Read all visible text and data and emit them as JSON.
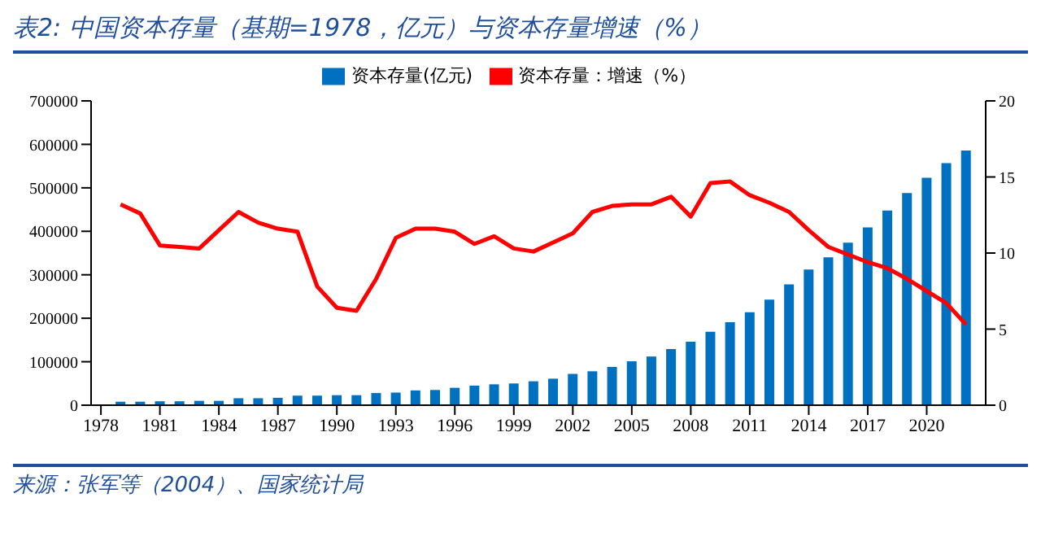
{
  "chart_data": {
    "type": "bar",
    "title": "表2:  中国资本存量（基期=1978，亿元）与资本存量增速（%）",
    "annotations": [
      "来源：张军等（2004）、国家统计局"
    ],
    "x": [
      1979,
      1980,
      1981,
      1982,
      1983,
      1984,
      1985,
      1986,
      1987,
      1988,
      1989,
      1990,
      1991,
      1992,
      1993,
      1994,
      1995,
      1996,
      1997,
      1998,
      1999,
      2000,
      2001,
      2002,
      2003,
      2004,
      2005,
      2006,
      2007,
      2008,
      2009,
      2010,
      2011,
      2012,
      2013,
      2014,
      2015,
      2016,
      2017,
      2018,
      2019,
      2020,
      2021,
      2022
    ],
    "series": [
      {
        "name": "资本存量(亿元)",
        "color": "#0070c0",
        "values": [
          8000,
          8000,
          9000,
          9000,
          10000,
          10000,
          16000,
          16000,
          17000,
          22000,
          22000,
          23000,
          23000,
          28000,
          29000,
          34000,
          35000,
          40000,
          45000,
          48000,
          50000,
          55000,
          61000,
          72000,
          78000,
          88000,
          101000,
          112000,
          129000,
          146000,
          169000,
          191000,
          214000,
          243000,
          278000,
          312000,
          340000,
          374000,
          409000,
          448000,
          488000,
          523000,
          557000,
          586000
        ]
      },
      {
        "name": "资本存量：增速（%）",
        "type": "line",
        "axis": "y2",
        "color": "#ff0000",
        "values": [
          13.2,
          12.6,
          10.5,
          10.4,
          10.3,
          11.5,
          12.7,
          12.0,
          11.6,
          11.4,
          7.8,
          6.4,
          6.2,
          8.3,
          11.0,
          11.6,
          11.6,
          11.4,
          10.6,
          11.1,
          10.3,
          10.1,
          10.7,
          11.3,
          12.7,
          13.1,
          13.2,
          13.2,
          13.7,
          12.4,
          14.6,
          14.7,
          13.8,
          13.3,
          12.7,
          11.5,
          10.4,
          9.9,
          9.4,
          9.0,
          8.3,
          7.5,
          6.7,
          5.3
        ]
      }
    ],
    "xlim": [
      1977.5,
      2023
    ],
    "xticks": [
      1978,
      1981,
      1984,
      1987,
      1990,
      1993,
      1996,
      1999,
      2002,
      2005,
      2008,
      2011,
      2014,
      2017,
      2020
    ],
    "ylim": [
      0,
      700000
    ],
    "yticks": [
      0,
      100000,
      200000,
      300000,
      400000,
      500000,
      600000,
      700000
    ],
    "y2lim": [
      0,
      20
    ],
    "y2ticks": [
      0,
      5,
      10,
      15,
      20
    ],
    "grid": false,
    "legend": "top",
    "marker": "none",
    "line_style": "solid"
  }
}
